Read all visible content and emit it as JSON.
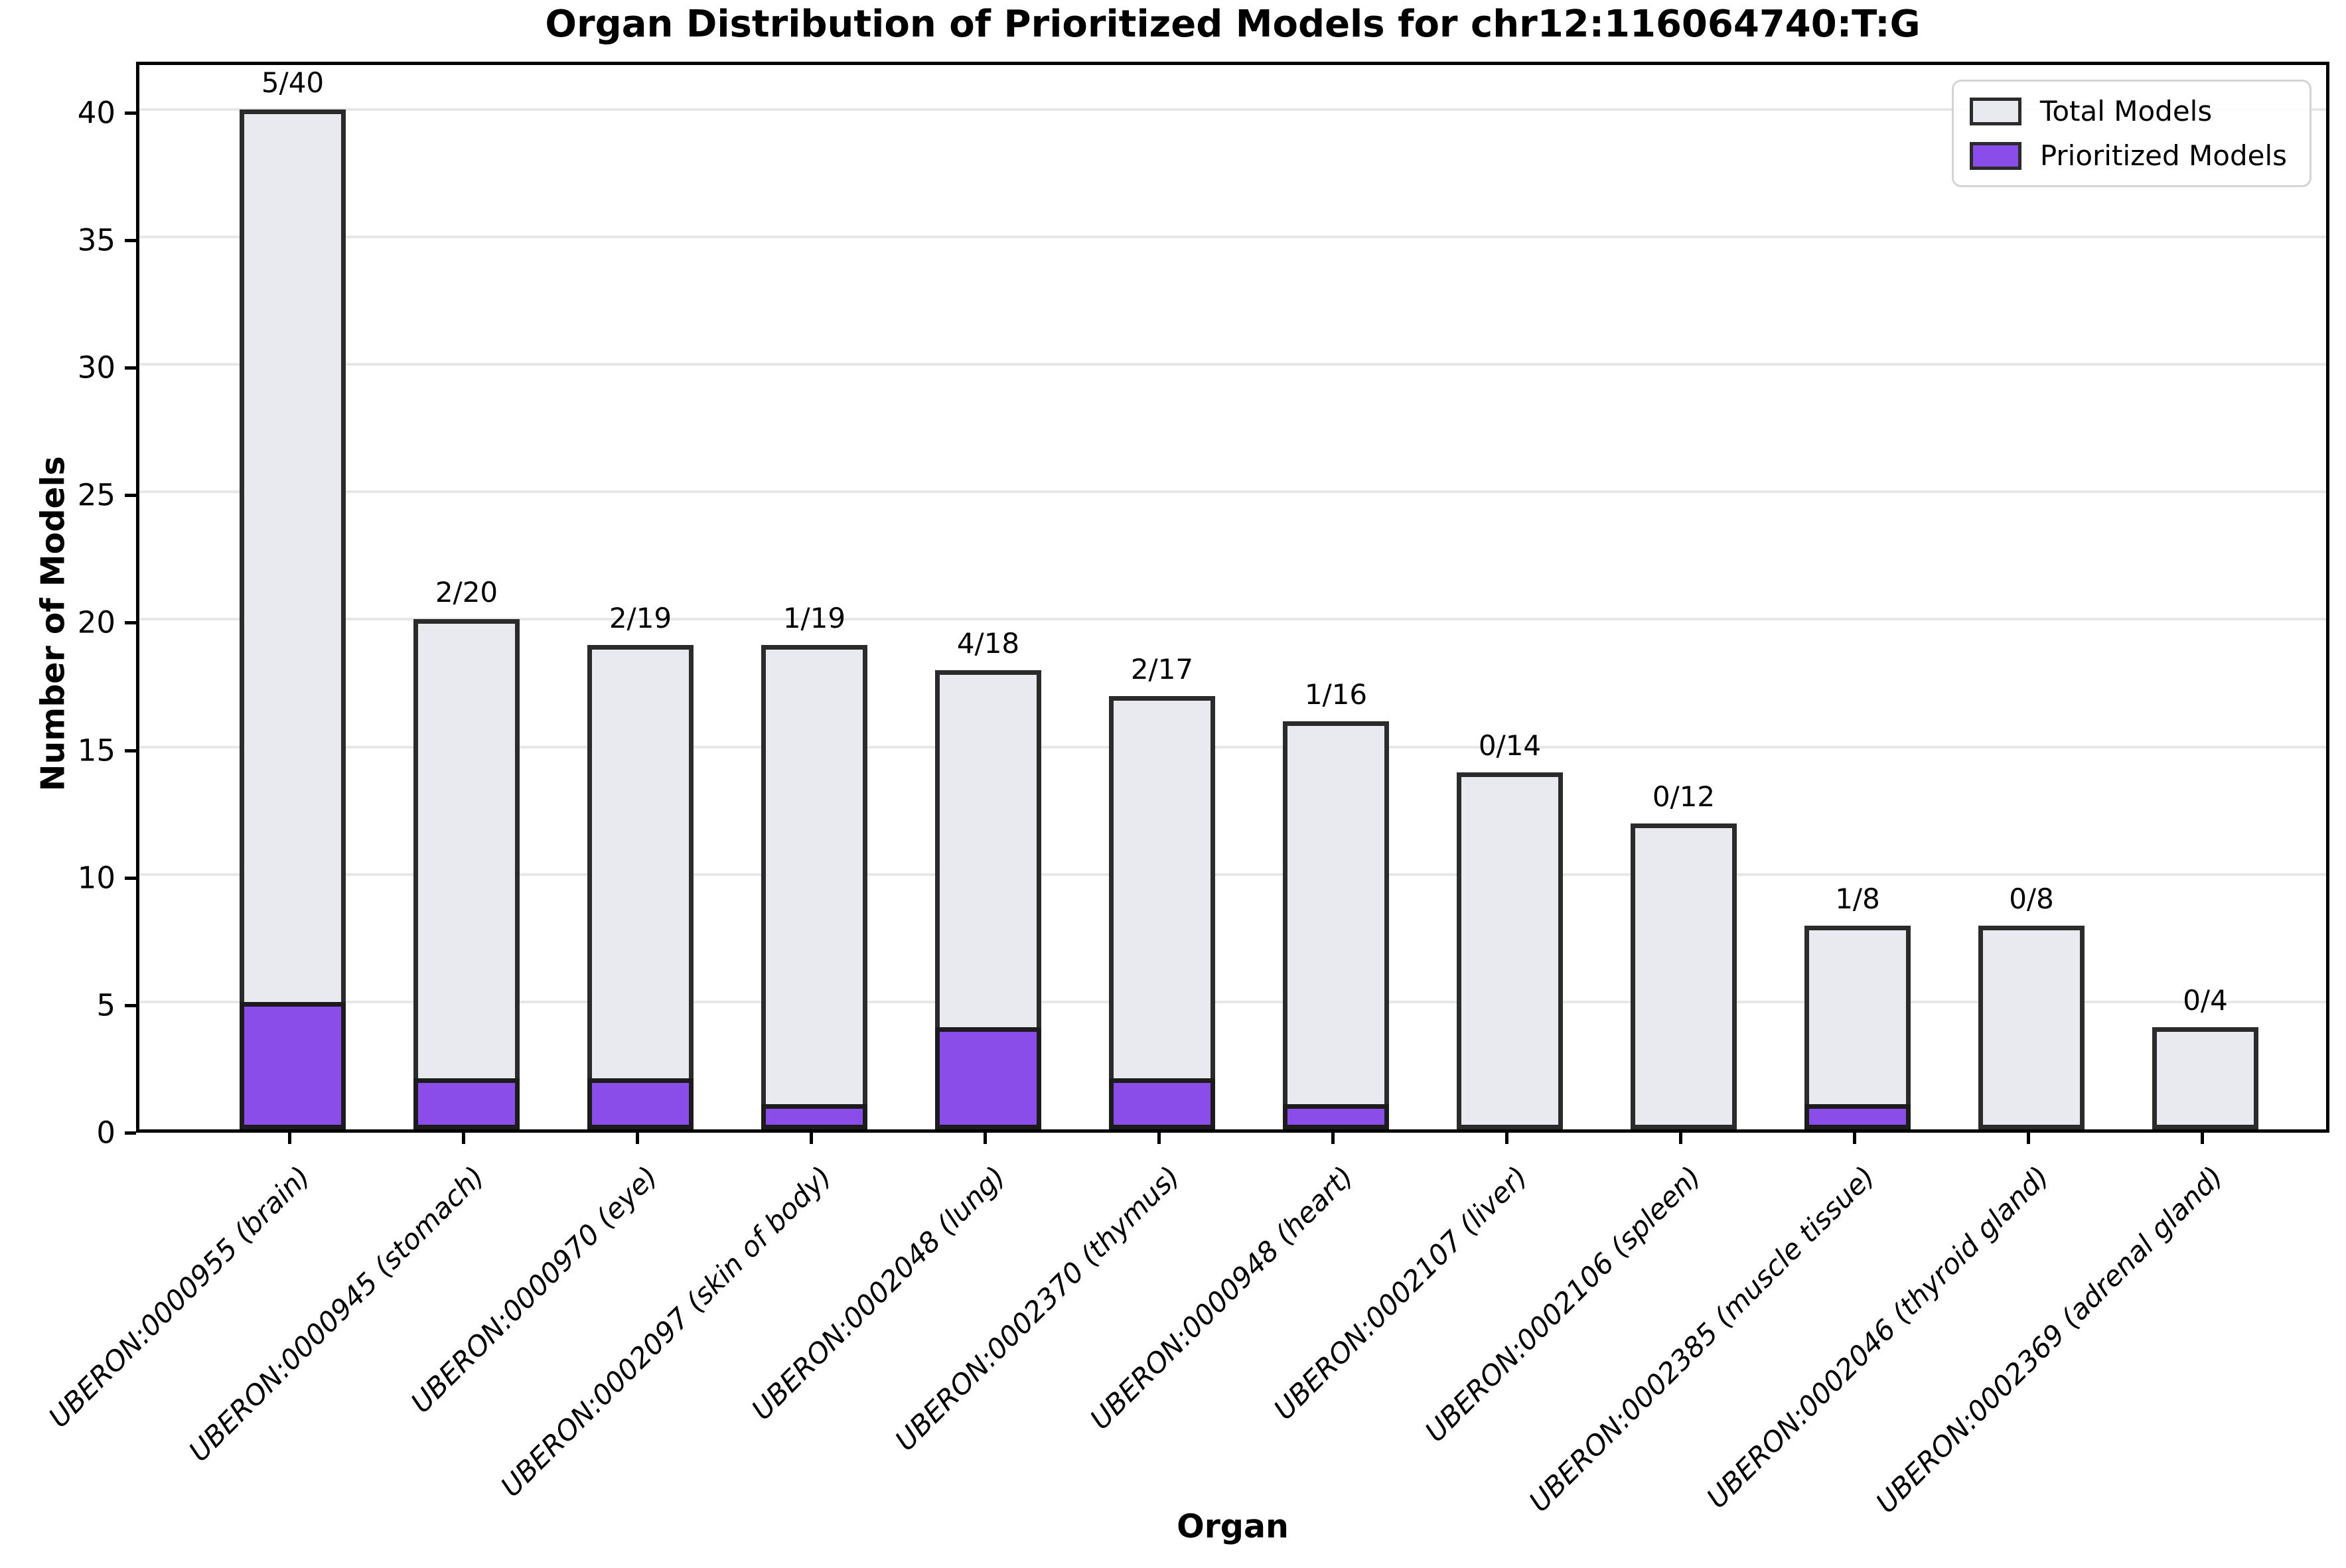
{
  "title": "Organ Distribution of Prioritized Models for chr12:116064740:T:G",
  "legend": {
    "position": "upper right",
    "items": [
      {
        "label": "Total Models",
        "color": "#e9eaef"
      },
      {
        "label": "Prioritized Models",
        "color": "#8a4de9"
      }
    ]
  },
  "colors": {
    "total_fill": "#e9eaef",
    "prioritized_fill": "#8a4de9",
    "bar_edge": "#2b2b2b",
    "gridline": "#e7e7e7",
    "spine": "#000000"
  },
  "chart_data": {
    "type": "bar",
    "title": "Organ Distribution of Prioritized Models for chr12:116064740:T:G",
    "xlabel": "Organ",
    "ylabel": "Number of Models",
    "ylim": [
      0,
      42
    ],
    "yticks": [
      0,
      5,
      10,
      15,
      20,
      25,
      30,
      35,
      40
    ],
    "grid": "horizontal",
    "legend_position": "upper right",
    "categories": [
      "UBERON:0000955 (brain)",
      "UBERON:0000945 (stomach)",
      "UBERON:0000970 (eye)",
      "UBERON:0002097 (skin of body)",
      "UBERON:0002048 (lung)",
      "UBERON:0002370 (thymus)",
      "UBERON:0000948 (heart)",
      "UBERON:0002107 (liver)",
      "UBERON:0002106 (spleen)",
      "UBERON:0002385 (muscle tissue)",
      "UBERON:0002046 (thyroid gland)",
      "UBERON:0002369 (adrenal gland)"
    ],
    "series": [
      {
        "name": "Total Models",
        "color": "#e9eaef",
        "values": [
          40,
          20,
          19,
          19,
          18,
          17,
          16,
          14,
          12,
          8,
          8,
          4
        ]
      },
      {
        "name": "Prioritized Models",
        "color": "#8a4de9",
        "values": [
          5,
          2,
          2,
          1,
          4,
          2,
          1,
          0,
          0,
          1,
          0,
          0
        ]
      }
    ],
    "annotations": [
      "5/40",
      "2/20",
      "2/19",
      "1/19",
      "4/18",
      "2/17",
      "1/16",
      "0/14",
      "0/12",
      "1/8",
      "0/8",
      "0/4"
    ]
  }
}
